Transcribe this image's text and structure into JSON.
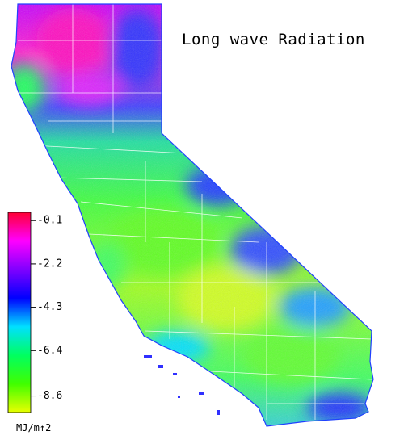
{
  "map": {
    "title": "Long wave Radiation",
    "colorbar": {
      "label": "MJ/m↑2",
      "lim": [
        0.3,
        -9.4
      ],
      "ticks": [
        -0.1,
        -2.2,
        -4.3,
        -6.4,
        -8.6
      ],
      "colors": [
        "#ff0033",
        "#ff00ff",
        "#8000ff",
        "#0000ff",
        "#00e0ff",
        "#00ff60",
        "#40ff00",
        "#e8ff00"
      ]
    }
  }
}
